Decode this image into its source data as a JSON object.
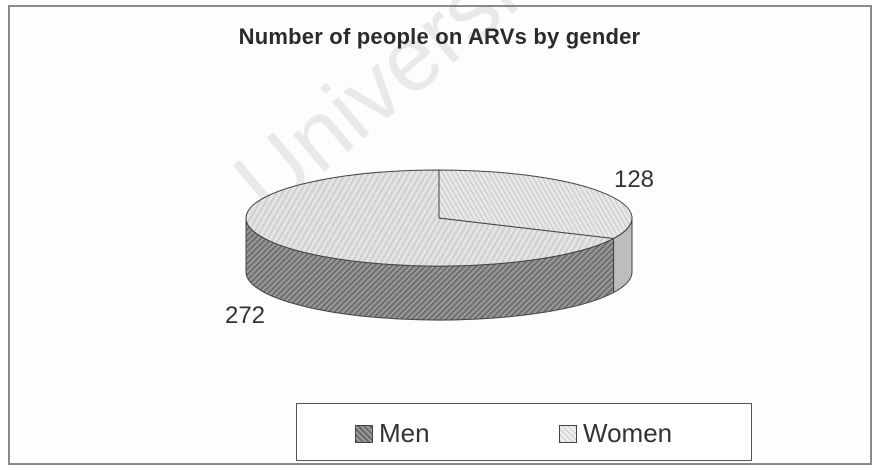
{
  "chart_data": {
    "type": "pie",
    "title": "Number of people on ARVs by gender",
    "categories": [
      "Men",
      "Women"
    ],
    "values": [
      272,
      128
    ],
    "data_labels": [
      "272",
      "128"
    ],
    "legend_position": "bottom",
    "colors": [
      "#7f7f7f",
      "#dcdcdc"
    ],
    "style": "3d"
  },
  "watermark": "University"
}
